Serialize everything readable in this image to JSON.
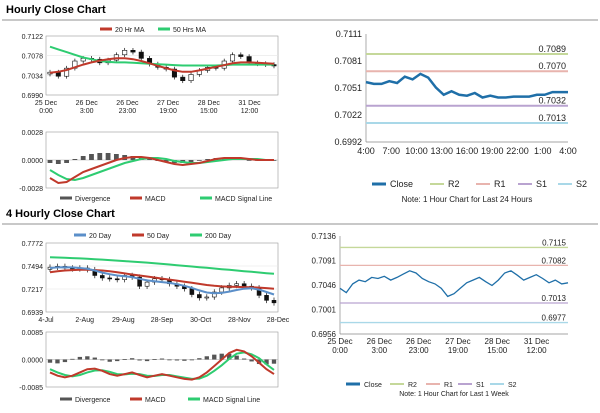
{
  "sections": {
    "hourly_title": "Hourly Close Chart",
    "four_hourly_title": "4 Hourly Close Chart"
  },
  "chart_data": [
    {
      "id": "hourly-candles",
      "type": "candlestick",
      "legend": [
        "20 Hr MA",
        "50 Hrs MA"
      ],
      "legend_colors": [
        "#c0392b",
        "#2ecc71"
      ],
      "yticks": [
        "0.7122",
        "0.7078",
        "0.7034",
        "0.6990"
      ],
      "xticks": [
        [
          "25 Dec",
          "0:00"
        ],
        [
          "26 Dec",
          "3:00"
        ],
        [
          "26 Dec",
          "23:00"
        ],
        [
          "27 Dec",
          "19:00"
        ],
        [
          "28 Dec",
          "15:00"
        ],
        [
          "31 Dec",
          "12:00"
        ]
      ],
      "ylim": [
        0.699,
        0.7122
      ],
      "close": [
        0.7041,
        0.7032,
        0.705,
        0.7066,
        0.7072,
        0.707,
        0.7062,
        0.7068,
        0.708,
        0.709,
        0.7086,
        0.7072,
        0.7059,
        0.7052,
        0.7048,
        0.703,
        0.7022,
        0.7036,
        0.7045,
        0.7052,
        0.705,
        0.7066,
        0.708,
        0.7076,
        0.7062,
        0.706,
        0.7058,
        0.7055
      ],
      "ma20": [
        0.704,
        0.7042,
        0.7046,
        0.7052,
        0.7058,
        0.7063,
        0.7067,
        0.707,
        0.7072,
        0.7072,
        0.707,
        0.7066,
        0.7061,
        0.7055,
        0.705,
        0.7045,
        0.7042,
        0.7042,
        0.7045,
        0.7049,
        0.7053,
        0.7057,
        0.7061,
        0.7063,
        0.7063,
        0.7062,
        0.7061,
        0.706
      ],
      "ma50": [
        0.7098,
        0.7092,
        0.7086,
        0.708,
        0.7074,
        0.707,
        0.7066,
        0.7064,
        0.7063,
        0.7063,
        0.7062,
        0.7061,
        0.706,
        0.7059,
        0.7058,
        0.7057,
        0.7056,
        0.7056,
        0.7056,
        0.7056,
        0.7056,
        0.7057,
        0.7058,
        0.7058,
        0.7058,
        0.7058,
        0.7058,
        0.7058
      ]
    },
    {
      "id": "hourly-macd",
      "type": "macd",
      "legend": [
        "Divergence",
        "MACD",
        "MACD Signal Line"
      ],
      "legend_colors": [
        "#555555",
        "#c0392b",
        "#2ecc71"
      ],
      "yticks": [
        "0.0028",
        "0.0000",
        "-0.0028"
      ],
      "ylim": [
        -0.0028,
        0.0028
      ],
      "macd": [
        -0.0018,
        -0.0023,
        -0.0022,
        -0.0017,
        -0.0012,
        -0.0009,
        -0.0006,
        -0.0003,
        0.0,
        0.0002,
        0.0003,
        0.0003,
        0.0002,
        0.0,
        -0.0002,
        -0.0004,
        -0.0005,
        -0.0004,
        -0.0003,
        -0.0001,
        0.0001,
        0.0002,
        0.0002,
        0.0002,
        0.0001,
        0.0,
        0.0,
        0.0
      ],
      "signal": [
        -0.001,
        -0.0015,
        -0.0019,
        -0.002,
        -0.0018,
        -0.0015,
        -0.0012,
        -0.0009,
        -0.0006,
        -0.0003,
        -0.0001,
        0.0001,
        0.0002,
        0.0002,
        0.0001,
        -0.0001,
        -0.0002,
        -0.0003,
        -0.0003,
        -0.0002,
        -0.0001,
        0.0,
        0.0001,
        0.0001,
        0.0001,
        0.0001,
        0.0,
        0.0
      ],
      "divergence": [
        -0.0003,
        -0.0004,
        -0.0003,
        0.0001,
        0.0004,
        0.0006,
        0.0007,
        0.0007,
        0.0006,
        0.0005,
        0.0004,
        0.0003,
        0.0001,
        -0.0001,
        -0.0002,
        -0.0003,
        -0.0003,
        -0.0002,
        0.0,
        0.0001,
        0.0002,
        0.0002,
        0.0001,
        0.0001,
        0.0,
        0.0,
        0.0,
        0.0
      ]
    },
    {
      "id": "hourly-pivot",
      "type": "line",
      "ylim": [
        0.6992,
        0.7111
      ],
      "yticks": [
        "0.7111",
        "0.7081",
        "0.7051",
        "0.7022",
        "0.6992"
      ],
      "xticks": [
        "4:00",
        "7:00",
        "10:00",
        "13:00",
        "16:00",
        "19:00",
        "22:00",
        "1:00",
        "4:00"
      ],
      "close": [
        0.7058,
        0.7056,
        0.7056,
        0.7059,
        0.7057,
        0.7064,
        0.7061,
        0.7067,
        0.7063,
        0.7052,
        0.7044,
        0.7048,
        0.7044,
        0.7043,
        0.7046,
        0.7041,
        0.7043,
        0.7041,
        0.7041,
        0.7042,
        0.7042,
        0.7042,
        0.7044,
        0.7044,
        0.7047,
        0.7047,
        0.7047
      ],
      "levels": [
        {
          "name": "R2",
          "value": 0.7089,
          "label": "0.7089",
          "color": "#c5d89a"
        },
        {
          "name": "R1",
          "value": 0.707,
          "label": "0.7070",
          "color": "#e8b4ae"
        },
        {
          "name": "S1",
          "value": 0.7032,
          "label": "0.7032",
          "color": "#b9a3d0"
        },
        {
          "name": "S2",
          "value": 0.7013,
          "label": "0.7013",
          "color": "#a9d8e8"
        }
      ],
      "legend": [
        "Close",
        "R2",
        "R1",
        "S1",
        "S2"
      ],
      "legend_colors": [
        "#1f6fa8",
        "#c5d89a",
        "#e8b4ae",
        "#b9a3d0",
        "#a9d8e8"
      ],
      "note": "Note: 1 Hour Chart for Last 24 Hours"
    },
    {
      "id": "fourh-candles",
      "type": "candlestick",
      "legend": [
        "20 Day",
        "50 Day",
        "200 Day"
      ],
      "legend_colors": [
        "#5b8fc9",
        "#c0392b",
        "#2ecc71"
      ],
      "yticks": [
        "0.7772",
        "0.7494",
        "0.7217",
        "0.6939"
      ],
      "xticks": [
        "4-Jul",
        "2-Aug",
        "29-Aug",
        "28-Sep",
        "30-Oct",
        "28-Nov",
        "28-Dec"
      ],
      "ylim": [
        0.6939,
        0.7772
      ],
      "close": [
        0.748,
        0.749,
        0.747,
        0.746,
        0.747,
        0.745,
        0.738,
        0.735,
        0.734,
        0.733,
        0.738,
        0.736,
        0.725,
        0.73,
        0.734,
        0.733,
        0.728,
        0.725,
        0.722,
        0.715,
        0.711,
        0.712,
        0.718,
        0.723,
        0.726,
        0.728,
        0.725,
        0.723,
        0.714,
        0.708,
        0.705
      ],
      "ma20": [
        0.747,
        0.7478,
        0.748,
        0.7478,
        0.747,
        0.746,
        0.744,
        0.7415,
        0.7395,
        0.738,
        0.737,
        0.736,
        0.734,
        0.732,
        0.731,
        0.73,
        0.729,
        0.7275,
        0.7255,
        0.723,
        0.72,
        0.7175,
        0.7165,
        0.717,
        0.7185,
        0.7205,
        0.722,
        0.7225,
        0.721,
        0.718,
        0.715
      ],
      "ma50": [
        0.742,
        0.743,
        0.744,
        0.7445,
        0.7448,
        0.7448,
        0.7445,
        0.744,
        0.743,
        0.7418,
        0.7405,
        0.7392,
        0.738,
        0.7368,
        0.7355,
        0.7342,
        0.733,
        0.7318,
        0.7305,
        0.7292,
        0.7278,
        0.7265,
        0.7255,
        0.7248,
        0.7244,
        0.7242,
        0.724,
        0.7238,
        0.7234,
        0.7228,
        0.722
      ],
      "ma200": [
        0.76,
        0.7597,
        0.7594,
        0.759,
        0.7586,
        0.7582,
        0.7577,
        0.7572,
        0.7566,
        0.756,
        0.7554,
        0.7548,
        0.7542,
        0.7535,
        0.7528,
        0.752,
        0.7512,
        0.7504,
        0.7496,
        0.7488,
        0.748,
        0.7472,
        0.7464,
        0.7456,
        0.7448,
        0.744,
        0.7432,
        0.7424,
        0.7416,
        0.7408,
        0.74
      ]
    },
    {
      "id": "fourh-macd",
      "type": "macd",
      "legend": [
        "Divergence",
        "MACD",
        "MACD Signal Line"
      ],
      "legend_colors": [
        "#555555",
        "#c0392b",
        "#2ecc71"
      ],
      "yticks": [
        "0.0085",
        "0.0000",
        "-0.0085"
      ],
      "ylim": [
        -0.0085,
        0.0085
      ],
      "macd": [
        -0.004,
        -0.005,
        -0.0055,
        -0.005,
        -0.004,
        -0.003,
        -0.0028,
        -0.0035,
        -0.0045,
        -0.005,
        -0.0045,
        -0.004,
        -0.0048,
        -0.0055,
        -0.005,
        -0.0045,
        -0.005,
        -0.0055,
        -0.006,
        -0.0062,
        -0.0055,
        -0.004,
        -0.002,
        0.0,
        0.002,
        0.003,
        0.0025,
        0.001,
        -0.001,
        -0.003,
        -0.0045
      ],
      "signal": [
        -0.003,
        -0.004,
        -0.0048,
        -0.0052,
        -0.0048,
        -0.004,
        -0.0034,
        -0.0033,
        -0.0038,
        -0.0045,
        -0.0046,
        -0.0044,
        -0.0045,
        -0.005,
        -0.0051,
        -0.0048,
        -0.0048,
        -0.0052,
        -0.0056,
        -0.006,
        -0.0059,
        -0.005,
        -0.0035,
        -0.0018,
        0.0002,
        0.0018,
        0.0022,
        0.0016,
        0.0004,
        -0.0015,
        -0.0032
      ],
      "divergence": [
        -0.001,
        -0.0012,
        -0.0008,
        0.0002,
        0.0008,
        0.001,
        0.0006,
        -0.0002,
        -0.0007,
        -0.0005,
        0.0001,
        0.0004,
        -0.0003,
        -0.0005,
        0.0001,
        0.0003,
        -0.0002,
        -0.0003,
        -0.0004,
        -0.0002,
        0.0004,
        0.001,
        0.0015,
        0.0018,
        0.0018,
        0.0012,
        0.0003,
        -0.0006,
        -0.0014,
        -0.0015,
        -0.0013
      ]
    },
    {
      "id": "weekly-pivot",
      "type": "line",
      "ylim": [
        0.6956,
        0.7136
      ],
      "yticks": [
        "0.7136",
        "0.7091",
        "0.7046",
        "0.7001",
        "0.6956"
      ],
      "xticks": [
        [
          "25 Dec",
          "0:00"
        ],
        [
          "26 Dec",
          "3:00"
        ],
        [
          "26 Dec",
          "23:00"
        ],
        [
          "27 Dec",
          "19:00"
        ],
        [
          "28 Dec",
          "15:00"
        ],
        [
          "31 Dec",
          "12:00"
        ]
      ],
      "close": [
        0.704,
        0.7032,
        0.7048,
        0.7055,
        0.7052,
        0.706,
        0.7058,
        0.7062,
        0.7055,
        0.706,
        0.7066,
        0.7072,
        0.7068,
        0.7058,
        0.7052,
        0.7048,
        0.704,
        0.7025,
        0.703,
        0.704,
        0.705,
        0.7055,
        0.706,
        0.7052,
        0.7045,
        0.7055,
        0.7068,
        0.7072,
        0.7064,
        0.7055,
        0.706,
        0.7065,
        0.7058,
        0.705,
        0.7055,
        0.7048,
        0.705
      ],
      "levels": [
        {
          "name": "R2",
          "value": 0.7115,
          "label": "0.7115",
          "color": "#c5d89a"
        },
        {
          "name": "R1",
          "value": 0.7082,
          "label": "0.7082",
          "color": "#e8b4ae"
        },
        {
          "name": "S1",
          "value": 0.7013,
          "label": "0.7013",
          "color": "#b9a3d0"
        },
        {
          "name": "S2",
          "value": 0.6977,
          "label": "0.6977",
          "color": "#a9d8e8"
        }
      ],
      "legend": [
        "Close",
        "R2",
        "R1",
        "S1",
        "S2"
      ],
      "legend_colors": [
        "#1f6fa8",
        "#c5d89a",
        "#e8b4ae",
        "#b9a3d0",
        "#a9d8e8"
      ],
      "note": "Note: 1 Hour Chart for Last 1 Week"
    }
  ]
}
